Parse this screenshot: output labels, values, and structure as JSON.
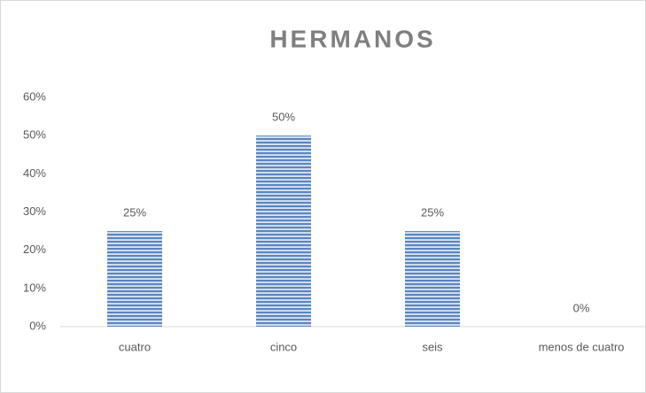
{
  "chart_data": {
    "type": "bar",
    "title": "HERMANOS",
    "categories": [
      "cuatro",
      "cinco",
      "seis",
      "menos de cuatro"
    ],
    "values": [
      25,
      50,
      25,
      0
    ],
    "value_labels": [
      "25%",
      "50%",
      "25%",
      "0%"
    ],
    "color": "#5b86c0",
    "ylim": [
      0,
      60
    ],
    "yticks": [
      {
        "value": 0,
        "label": "0%"
      },
      {
        "value": 10,
        "label": "10%"
      },
      {
        "value": 20,
        "label": "20%"
      },
      {
        "value": 30,
        "label": "30%"
      },
      {
        "value": 40,
        "label": "40%"
      },
      {
        "value": 50,
        "label": "50%"
      },
      {
        "value": 60,
        "label": "60%"
      }
    ],
    "grid": false
  }
}
